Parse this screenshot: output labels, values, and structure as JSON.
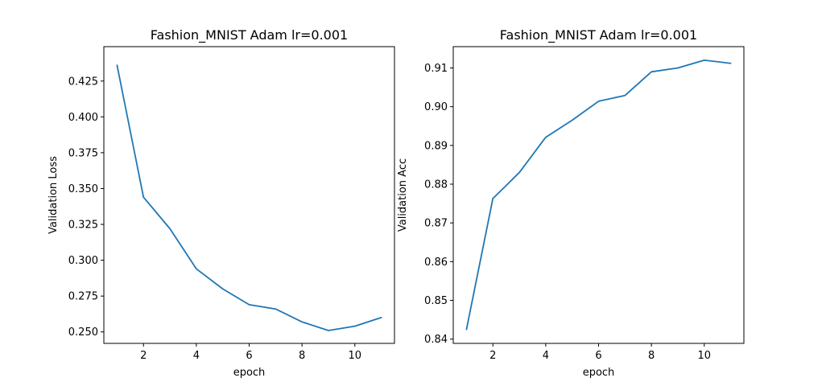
{
  "chart_data": [
    {
      "type": "line",
      "title": "Fashion_MNIST Adam lr=0.001",
      "xlabel": "epoch",
      "ylabel": "Validation Loss",
      "x": [
        1,
        2,
        3,
        4,
        5,
        6,
        7,
        8,
        9,
        10,
        11
      ],
      "xlim": [
        0.5,
        11.5
      ],
      "ylim": [
        0.242,
        0.449
      ],
      "xticks": [
        2,
        4,
        6,
        8,
        10
      ],
      "xtick_labels": [
        "2",
        "4",
        "6",
        "8",
        "10"
      ],
      "yticks": [
        0.25,
        0.275,
        0.3,
        0.325,
        0.35,
        0.375,
        0.4,
        0.425
      ],
      "ytick_labels": [
        "0.250",
        "0.275",
        "0.300",
        "0.325",
        "0.350",
        "0.375",
        "0.400",
        "0.425"
      ],
      "grid": false,
      "series": [
        {
          "values": [
            0.436,
            0.344,
            0.322,
            0.294,
            0.28,
            0.269,
            0.266,
            0.257,
            0.251,
            0.254,
            0.26
          ],
          "color": "#1f77b4"
        }
      ]
    },
    {
      "type": "line",
      "title": "Fashion_MNIST Adam lr=0.001",
      "xlabel": "epoch",
      "ylabel": "Validation Acc",
      "x": [
        1,
        2,
        3,
        4,
        5,
        6,
        7,
        8,
        9,
        10,
        11
      ],
      "xlim": [
        0.5,
        11.5
      ],
      "ylim": [
        0.8389,
        0.9155
      ],
      "xticks": [
        2,
        4,
        6,
        8,
        10
      ],
      "xtick_labels": [
        "2",
        "4",
        "6",
        "8",
        "10"
      ],
      "yticks": [
        0.84,
        0.85,
        0.86,
        0.87,
        0.88,
        0.89,
        0.9,
        0.91
      ],
      "ytick_labels": [
        "0.84",
        "0.85",
        "0.86",
        "0.87",
        "0.88",
        "0.89",
        "0.90",
        "0.91"
      ],
      "grid": false,
      "series": [
        {
          "values": [
            0.8425,
            0.8763,
            0.883,
            0.8921,
            0.8965,
            0.9014,
            0.9029,
            0.909,
            0.91,
            0.912,
            0.9112
          ],
          "color": "#1f77b4"
        }
      ]
    }
  ]
}
